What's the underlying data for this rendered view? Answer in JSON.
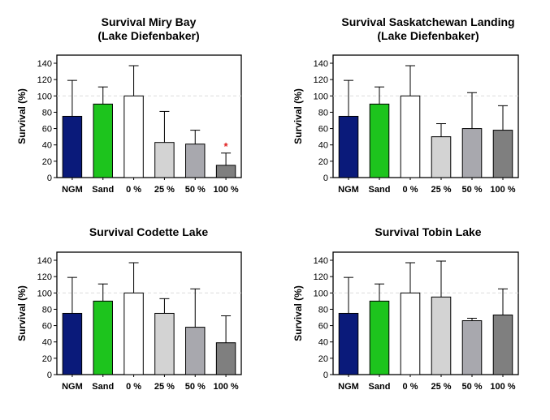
{
  "chart_data": [
    {
      "type": "bar",
      "title": [
        "Survival Miry Bay",
        "(Lake Diefenbaker)"
      ],
      "ylabel": "Survival (%)",
      "ylim": [
        0,
        140
      ],
      "yticks": [
        0,
        20,
        40,
        60,
        80,
        100,
        120,
        140
      ],
      "reference_line": 100,
      "categories": [
        "NGM",
        "Sand",
        "0 %",
        "25 %",
        "50 %",
        "100 %"
      ],
      "values": [
        75,
        90,
        100,
        43,
        41,
        15
      ],
      "error_upper": [
        119,
        111,
        137,
        81,
        58,
        30
      ],
      "bar_colors": [
        "#0a1a7a",
        "#1dc41d",
        "#ffffff",
        "#d3d3d3",
        "#a8a8ae",
        "#7f7f7f"
      ],
      "annotations": [
        {
          "category": "100 %",
          "text": "*",
          "color": "#e02020"
        }
      ]
    },
    {
      "type": "bar",
      "title": [
        "Survival Saskatchewan Landing",
        "(Lake Diefenbaker)"
      ],
      "ylabel": "Survival (%)",
      "ylim": [
        0,
        140
      ],
      "yticks": [
        0,
        20,
        40,
        60,
        80,
        100,
        120,
        140
      ],
      "reference_line": 100,
      "categories": [
        "NGM",
        "Sand",
        "0 %",
        "25 %",
        "50 %",
        "100 %"
      ],
      "values": [
        75,
        90,
        100,
        50,
        60,
        58
      ],
      "error_upper": [
        119,
        111,
        137,
        66,
        104,
        88
      ],
      "bar_colors": [
        "#0a1a7a",
        "#1dc41d",
        "#ffffff",
        "#d3d3d3",
        "#a8a8ae",
        "#7f7f7f"
      ],
      "annotations": []
    },
    {
      "type": "bar",
      "title": [
        "Survival Codette Lake"
      ],
      "ylabel": "Survival (%)",
      "ylim": [
        0,
        140
      ],
      "yticks": [
        0,
        20,
        40,
        60,
        80,
        100,
        120,
        140
      ],
      "reference_line": 100,
      "categories": [
        "NGM",
        "Sand",
        "0 %",
        "25 %",
        "50 %",
        "100 %"
      ],
      "values": [
        75,
        90,
        100,
        75,
        58,
        39
      ],
      "error_upper": [
        119,
        111,
        137,
        93,
        105,
        72
      ],
      "bar_colors": [
        "#0a1a7a",
        "#1dc41d",
        "#ffffff",
        "#d3d3d3",
        "#a8a8ae",
        "#7f7f7f"
      ],
      "annotations": []
    },
    {
      "type": "bar",
      "title": [
        "Survival Tobin Lake"
      ],
      "ylabel": "Survival (%)",
      "ylim": [
        0,
        140
      ],
      "yticks": [
        0,
        20,
        40,
        60,
        80,
        100,
        120,
        140
      ],
      "reference_line": 100,
      "categories": [
        "NGM",
        "Sand",
        "0 %",
        "25 %",
        "50 %",
        "100 %"
      ],
      "values": [
        75,
        90,
        100,
        95,
        66,
        73
      ],
      "error_upper": [
        119,
        111,
        137,
        139,
        69,
        105
      ],
      "bar_colors": [
        "#0a1a7a",
        "#1dc41d",
        "#ffffff",
        "#d3d3d3",
        "#a8a8ae",
        "#7f7f7f"
      ],
      "annotations": []
    }
  ]
}
